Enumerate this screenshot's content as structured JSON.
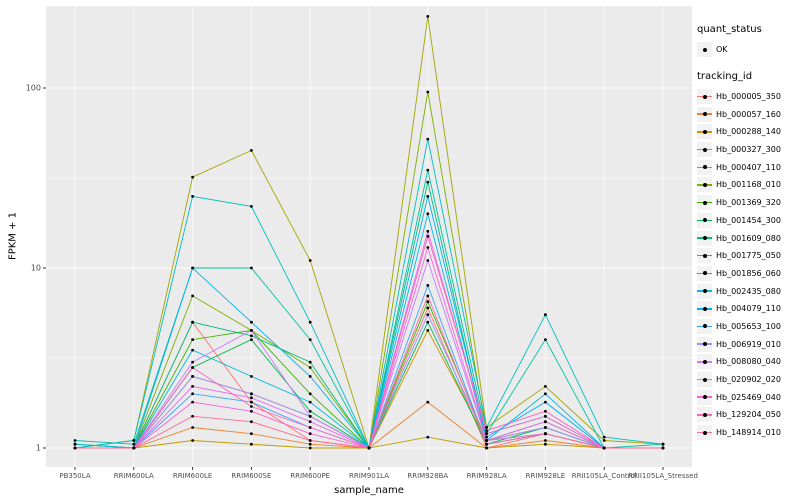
{
  "figure": {
    "background": "#FFFFFF",
    "panel_background": "#EBEBEB",
    "grid_color": "#FFFFFF",
    "tick_color": "#333333",
    "tick_label_color": "#4D4D4D"
  },
  "legend": {
    "quant_status_title": "quant_status",
    "quant_ok_label": "OK",
    "tracking_id_title": "tracking_id"
  },
  "chart_data": {
    "type": "line",
    "title": "",
    "xlabel": "sample_name",
    "ylabel": "FPKM + 1",
    "y_scale": "log10",
    "y_ticks": [
      1,
      10,
      100
    ],
    "y_minor_ticks": [
      3.162,
      31.62
    ],
    "ylim": [
      0.8,
      285
    ],
    "grid": true,
    "legend_position": "right",
    "point_color": "#000000",
    "categories": [
      "PB350LA",
      "RRIM600LA",
      "RRIM600LE",
      "RRIM600SE",
      "RRIM600PE",
      "RRIM901LA",
      "RRIM928BA",
      "RRIM928LA",
      "RRIM928LE",
      "RRII105LA_Control",
      "RRII105LA_Stressed"
    ],
    "series": [
      {
        "name": "Hb_000005_350",
        "color": "#F8766D",
        "values": [
          1.05,
          1.0,
          5.0,
          1.8,
          1.1,
          1.0,
          6.0,
          1.0,
          1.2,
          1.0,
          1.0
        ]
      },
      {
        "name": "Hb_000057_160",
        "color": "#EA8331",
        "values": [
          1.0,
          1.0,
          1.3,
          1.2,
          1.05,
          1.0,
          1.8,
          1.0,
          1.1,
          1.0,
          1.0
        ]
      },
      {
        "name": "Hb_000288_140",
        "color": "#D89000",
        "values": [
          1.0,
          1.0,
          2.5,
          2.0,
          1.5,
          1.0,
          4.5,
          1.1,
          1.3,
          1.0,
          1.0
        ]
      },
      {
        "name": "Hb_000327_300",
        "color": "#C09B00",
        "values": [
          1.0,
          1.0,
          1.1,
          1.05,
          1.0,
          1.0,
          1.15,
          1.0,
          1.05,
          1.0,
          1.0
        ]
      },
      {
        "name": "Hb_000407_110",
        "color": "#A3A500",
        "values": [
          1.0,
          1.1,
          32.0,
          45.0,
          11.0,
          1.0,
          250.0,
          1.3,
          2.2,
          1.1,
          1.05
        ]
      },
      {
        "name": "Hb_001168_010",
        "color": "#7CAE00",
        "values": [
          1.0,
          1.0,
          7.0,
          4.5,
          2.8,
          1.0,
          95.0,
          1.2,
          1.5,
          1.0,
          1.0
        ]
      },
      {
        "name": "Hb_001369_320",
        "color": "#39B600",
        "values": [
          1.0,
          1.0,
          4.0,
          4.5,
          2.0,
          1.0,
          6.5,
          1.1,
          1.2,
          1.0,
          1.0
        ]
      },
      {
        "name": "Hb_001454_300",
        "color": "#00BB4E",
        "values": [
          1.05,
          1.0,
          2.8,
          4.0,
          1.6,
          1.0,
          5.0,
          1.05,
          1.3,
          1.0,
          1.0
        ]
      },
      {
        "name": "Hb_001609_080",
        "color": "#00BF7D",
        "values": [
          1.0,
          1.0,
          5.0,
          4.2,
          3.0,
          1.0,
          30.0,
          1.1,
          1.4,
          1.0,
          1.0
        ]
      },
      {
        "name": "Hb_001775_050",
        "color": "#00C1A3",
        "values": [
          1.1,
          1.05,
          10.0,
          10.0,
          4.0,
          1.0,
          35.0,
          1.2,
          4.0,
          1.0,
          1.05
        ]
      },
      {
        "name": "Hb_001856_060",
        "color": "#00BFC4",
        "values": [
          1.0,
          1.1,
          25.0,
          22.0,
          5.0,
          1.0,
          52.0,
          1.3,
          5.5,
          1.15,
          1.05
        ]
      },
      {
        "name": "Hb_002435_080",
        "color": "#00BAE0",
        "values": [
          1.05,
          1.0,
          3.5,
          2.5,
          1.8,
          1.0,
          20.0,
          1.1,
          2.0,
          1.0,
          1.0
        ]
      },
      {
        "name": "Hb_004079_110",
        "color": "#00B0F6",
        "values": [
          1.0,
          1.0,
          10.0,
          5.0,
          2.5,
          1.0,
          25.0,
          1.15,
          1.8,
          1.0,
          1.0
        ]
      },
      {
        "name": "Hb_005653_100",
        "color": "#35A2FF",
        "values": [
          1.0,
          1.0,
          2.0,
          1.8,
          1.3,
          1.0,
          8.0,
          1.05,
          1.2,
          1.0,
          1.0
        ]
      },
      {
        "name": "Hb_006919_010",
        "color": "#9590FF",
        "values": [
          1.0,
          1.0,
          2.5,
          2.0,
          1.5,
          1.0,
          5.5,
          1.1,
          1.3,
          1.0,
          1.0
        ]
      },
      {
        "name": "Hb_008080_040",
        "color": "#C77CFF",
        "values": [
          1.0,
          1.0,
          3.0,
          4.5,
          1.5,
          1.0,
          11.0,
          1.1,
          1.2,
          1.0,
          1.0
        ]
      },
      {
        "name": "Hb_020902_020",
        "color": "#E76BF3",
        "values": [
          1.0,
          1.0,
          2.2,
          1.9,
          1.4,
          1.0,
          16.0,
          1.2,
          1.5,
          1.0,
          1.0
        ]
      },
      {
        "name": "Hb_025469_040",
        "color": "#FA62DB",
        "values": [
          1.0,
          1.0,
          1.8,
          1.6,
          1.2,
          1.0,
          13.0,
          1.1,
          1.4,
          1.0,
          1.0
        ]
      },
      {
        "name": "Hb_129204_050",
        "color": "#FF62BC",
        "values": [
          1.0,
          1.0,
          2.8,
          1.7,
          1.3,
          1.0,
          15.0,
          1.25,
          1.6,
          1.0,
          1.0
        ]
      },
      {
        "name": "Hb_148914_010",
        "color": "#FF6A98",
        "values": [
          1.0,
          1.0,
          1.5,
          1.4,
          1.1,
          1.0,
          7.0,
          1.05,
          1.2,
          1.0,
          1.0
        ]
      }
    ]
  }
}
